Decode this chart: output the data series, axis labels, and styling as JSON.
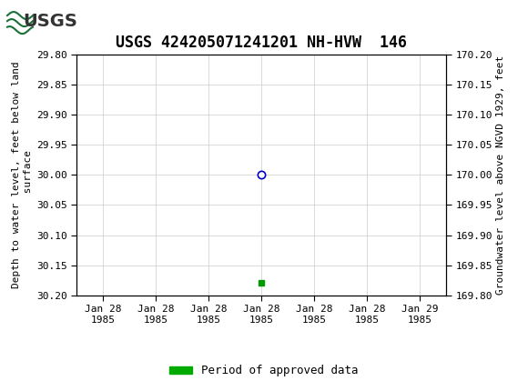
{
  "title": "USGS 424205071241201 NH-HVW  146",
  "ylabel_left": "Depth to water level, feet below land\n surface",
  "ylabel_right": "Groundwater level above NGVD 1929, feet",
  "ylim_left": [
    30.2,
    29.8
  ],
  "ylim_right": [
    169.8,
    170.2
  ],
  "yticks_left": [
    29.8,
    29.85,
    29.9,
    29.95,
    30.0,
    30.05,
    30.1,
    30.15,
    30.2
  ],
  "yticks_right": [
    170.2,
    170.15,
    170.1,
    170.05,
    170.0,
    169.95,
    169.9,
    169.85,
    169.8
  ],
  "data_point_x": 3,
  "data_point_y": 30.0,
  "green_point_x": 3,
  "green_point_y": 30.18,
  "xlim": [
    -0.5,
    6.5
  ],
  "xtick_positions": [
    0,
    1,
    2,
    3,
    4,
    5,
    6
  ],
  "xtick_labels": [
    "Jan 28\n1985",
    "Jan 28\n1985",
    "Jan 28\n1985",
    "Jan 28\n1985",
    "Jan 28\n1985",
    "Jan 28\n1985",
    "Jan 29\n1985"
  ],
  "header_color": "#1a7038",
  "grid_color": "#cccccc",
  "background_color": "#ffffff",
  "title_fontsize": 12,
  "axis_fontsize": 8,
  "tick_fontsize": 8,
  "legend_label": "Period of approved data",
  "legend_color": "#00aa00",
  "circle_color": "#0000cc",
  "square_color": "#009900"
}
